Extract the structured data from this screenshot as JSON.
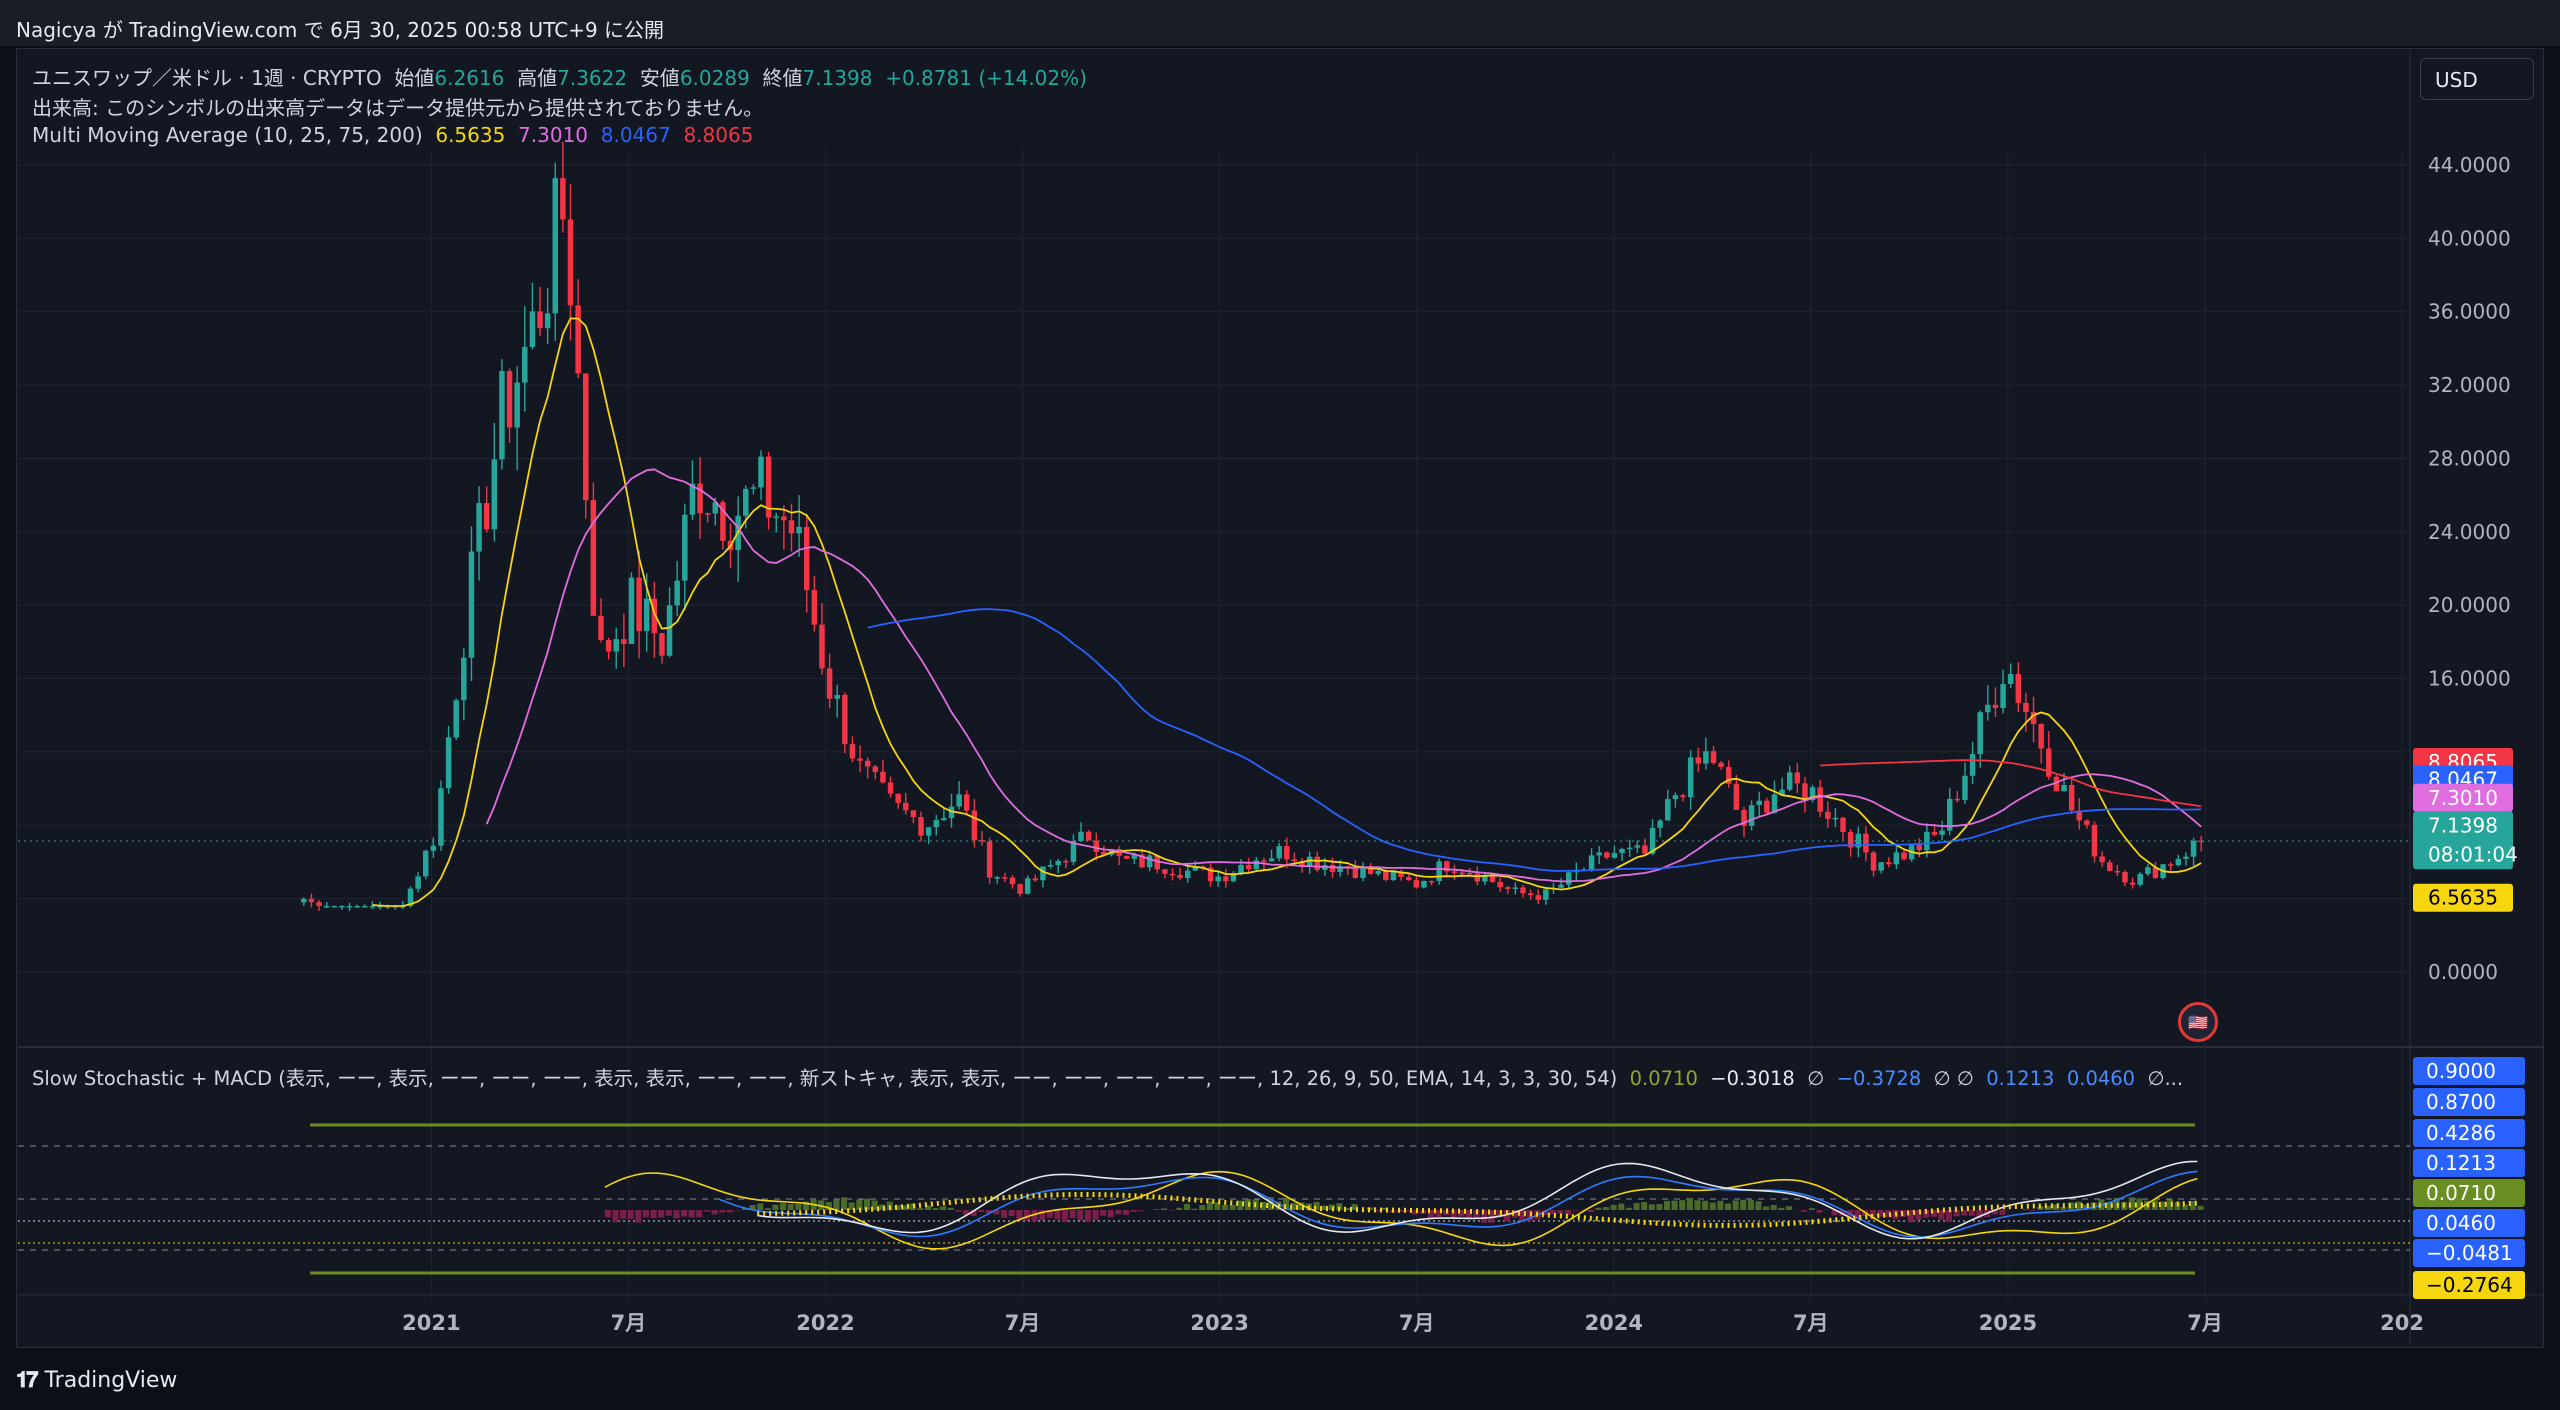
{
  "header": {
    "text": "Nagicya が TradingView.com で 6月 30, 2025 00:58 UTC+9 に公開"
  },
  "symbol_line": {
    "name": "ユニスワップ／米ドル · 1週 · CRYPTO",
    "open_label": "始値",
    "open": "6.2616",
    "high_label": "高値",
    "high": "7.3622",
    "low_label": "安値",
    "low": "6.0289",
    "close_label": "終値",
    "close": "7.1398",
    "change": "+0.8781 (+14.02%)"
  },
  "volume_line": {
    "text": "出来高: このシンボルの出来高データはデータ提供元から提供されておりません。"
  },
  "mma_line": {
    "label": "Multi Moving Average (10, 25, 75, 200)",
    "v10": "6.5635",
    "v25": "7.3010",
    "v75": "8.0467",
    "v200": "8.8065"
  },
  "indicator_line": {
    "label": "Slow Stochastic + MACD (表示, ーー, 表示, ーー, ーー, ーー, 表示, 表示, ーー, ーー, 新ストキャ, 表示, 表示, ーー, ーー, ーー, ーー, ーー, 12, 26, 9, 50, EMA, 14, 3, 3, 30, 54)",
    "v1": "0.0710",
    "v2": "−0.3018",
    "sym1": "∅",
    "v3": "−0.3728",
    "sym2": "∅ ∅",
    "v4": "0.1213",
    "v5": "0.0460",
    "sym3": "∅..."
  },
  "currency_button": {
    "label": "USD"
  },
  "price_axis": {
    "ticks": [
      "44.0000",
      "40.0000",
      "36.0000",
      "32.0000",
      "28.0000",
      "24.0000",
      "20.0000",
      "16.0000",
      "0.0000"
    ],
    "tick_values": [
      44,
      40,
      36,
      32,
      28,
      24,
      20,
      16,
      0
    ]
  },
  "price_tags": {
    "ma200": "8.8065",
    "ma75": "8.0467",
    "ma25": "7.3010",
    "last": "7.1398",
    "countdown": "08:01:04",
    "ma10": "6.5635"
  },
  "indicator_axis": {
    "top_cut": "1.0000",
    "ticks": [
      "0.9000",
      "0.8700",
      "0.4286",
      "0.1213",
      "0.0710",
      "0.0460",
      "−0.0481",
      "−0.2764"
    ]
  },
  "time_axis": {
    "labels": [
      "2021",
      "7月",
      "2022",
      "7月",
      "2023",
      "7月",
      "2024",
      "7月",
      "2025",
      "7月",
      "202"
    ]
  },
  "footer": {
    "brand": "TradingView"
  },
  "colors": {
    "up": "#26a69a",
    "down": "#f23645",
    "ma10": "#f5d60f",
    "ma25": "#e06ee0",
    "ma75": "#2962ff",
    "ma200": "#f23645",
    "background": "#131722"
  },
  "chart_data": {
    "type": "candlestick",
    "title": "ユニスワップ／米ドル · 1週 · CRYPTO",
    "ylim": [
      0,
      46
    ],
    "x_range": [
      "2020-09",
      "2025-12"
    ],
    "ohlc_weekly_approx": [
      {
        "date": "2020-09",
        "close": 4.0
      },
      {
        "date": "2020-10",
        "close": 3.0
      },
      {
        "date": "2020-11",
        "close": 3.1
      },
      {
        "date": "2020-12",
        "close": 3.5
      },
      {
        "date": "2021-01",
        "close": 7.5
      },
      {
        "date": "2021-02",
        "close": 20
      },
      {
        "date": "2021-03",
        "close": 30
      },
      {
        "date": "2021-04",
        "close": 35
      },
      {
        "date": "2021-05",
        "close": 42
      },
      {
        "date": "2021-05b",
        "close": 17
      },
      {
        "date": "2021-06",
        "close": 20
      },
      {
        "date": "2021-07",
        "close": 18
      },
      {
        "date": "2021-08",
        "close": 27
      },
      {
        "date": "2021-09",
        "close": 25
      },
      {
        "date": "2021-10",
        "close": 26
      },
      {
        "date": "2021-11",
        "close": 24
      },
      {
        "date": "2021-12",
        "close": 16
      },
      {
        "date": "2022-01",
        "close": 11
      },
      {
        "date": "2022-02",
        "close": 9
      },
      {
        "date": "2022-03",
        "close": 8
      },
      {
        "date": "2022-04",
        "close": 9.5
      },
      {
        "date": "2022-05",
        "close": 5.5
      },
      {
        "date": "2022-06",
        "close": 4.5
      },
      {
        "date": "2022-07",
        "close": 6
      },
      {
        "date": "2022-08",
        "close": 7.5
      },
      {
        "date": "2022-09",
        "close": 6
      },
      {
        "date": "2022-10",
        "close": 6
      },
      {
        "date": "2022-11",
        "close": 5.5
      },
      {
        "date": "2022-12",
        "close": 5.2
      },
      {
        "date": "2023-01",
        "close": 6.2
      },
      {
        "date": "2023-02",
        "close": 6.6
      },
      {
        "date": "2023-03",
        "close": 6.0
      },
      {
        "date": "2023-04",
        "close": 5.7
      },
      {
        "date": "2023-05",
        "close": 5.2
      },
      {
        "date": "2023-06",
        "close": 4.8
      },
      {
        "date": "2023-07",
        "close": 6.0
      },
      {
        "date": "2023-08",
        "close": 5.3
      },
      {
        "date": "2023-09",
        "close": 4.3
      },
      {
        "date": "2023-10",
        "close": 4.2
      },
      {
        "date": "2023-11",
        "close": 5.5
      },
      {
        "date": "2023-12",
        "close": 6.5
      },
      {
        "date": "2024-01",
        "close": 6.4
      },
      {
        "date": "2024-02",
        "close": 10
      },
      {
        "date": "2024-03",
        "close": 12
      },
      {
        "date": "2024-04",
        "close": 8
      },
      {
        "date": "2024-05",
        "close": 10
      },
      {
        "date": "2024-06",
        "close": 10
      },
      {
        "date": "2024-07",
        "close": 8
      },
      {
        "date": "2024-08",
        "close": 6
      },
      {
        "date": "2024-09",
        "close": 6.5
      },
      {
        "date": "2024-10",
        "close": 7.5
      },
      {
        "date": "2024-11",
        "close": 12
      },
      {
        "date": "2024-12",
        "close": 17
      },
      {
        "date": "2025-01",
        "close": 13
      },
      {
        "date": "2025-02",
        "close": 9
      },
      {
        "date": "2025-03",
        "close": 6
      },
      {
        "date": "2025-04",
        "close": 5
      },
      {
        "date": "2025-05",
        "close": 6
      },
      {
        "date": "2025-06",
        "close": 7.14
      }
    ]
  }
}
